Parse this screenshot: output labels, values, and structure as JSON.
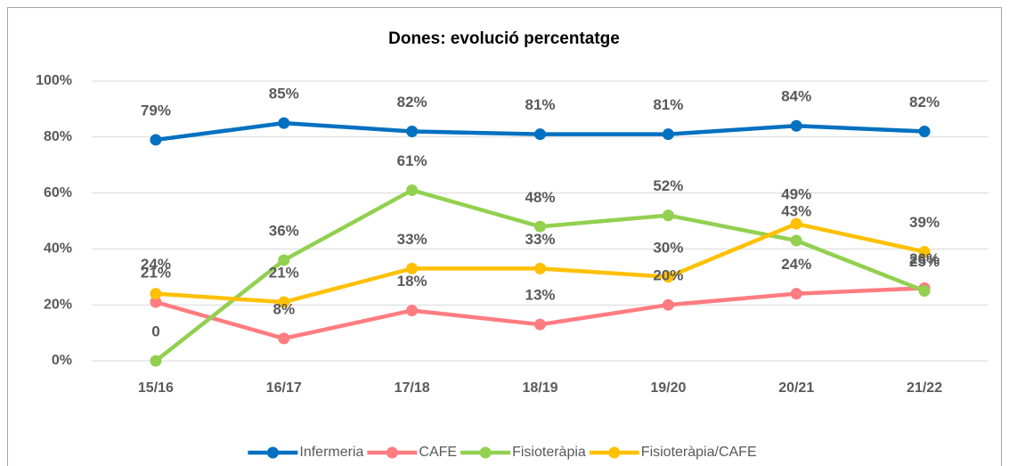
{
  "chart_data": {
    "type": "line",
    "title": "Dones: evolució percentatge",
    "categories": [
      "15/16",
      "16/17",
      "17/18",
      "18/19",
      "19/20",
      "20/21",
      "21/22"
    ],
    "series": [
      {
        "name": "Infermeria",
        "color": "#0070c0",
        "values": [
          79,
          85,
          82,
          81,
          81,
          84,
          82
        ],
        "value_labels": [
          "79%",
          "85%",
          "82%",
          "81%",
          "81%",
          "84%",
          "82%"
        ]
      },
      {
        "name": "CAFE",
        "color": "#ff7c80",
        "values": [
          21,
          8,
          18,
          13,
          20,
          24,
          26
        ],
        "value_labels": [
          "21%",
          "8%",
          "18%",
          "13%",
          "20%",
          "24%",
          "26%"
        ]
      },
      {
        "name": "Fisioteràpia",
        "color": "#92d050",
        "values": [
          0,
          36,
          61,
          48,
          52,
          43,
          25
        ],
        "value_labels": [
          "0",
          "36%",
          "61%",
          "48%",
          "52%",
          "43%",
          "25%"
        ]
      },
      {
        "name": "Fisioteràpia/CAFE",
        "color": "#ffc000",
        "values": [
          24,
          21,
          33,
          33,
          30,
          49,
          39
        ],
        "value_labels": [
          "24%",
          "21%",
          "33%",
          "33%",
          "30%",
          "49%",
          "39%"
        ]
      }
    ],
    "ylim": [
      0,
      100
    ],
    "yticks": [
      {
        "value": 0,
        "label": "0%"
      },
      {
        "value": 20,
        "label": "20%"
      },
      {
        "value": 40,
        "label": "40%"
      },
      {
        "value": 60,
        "label": "60%"
      },
      {
        "value": 80,
        "label": "80%"
      },
      {
        "value": 100,
        "label": "100%"
      }
    ],
    "grid": true,
    "legend": "bottom"
  }
}
